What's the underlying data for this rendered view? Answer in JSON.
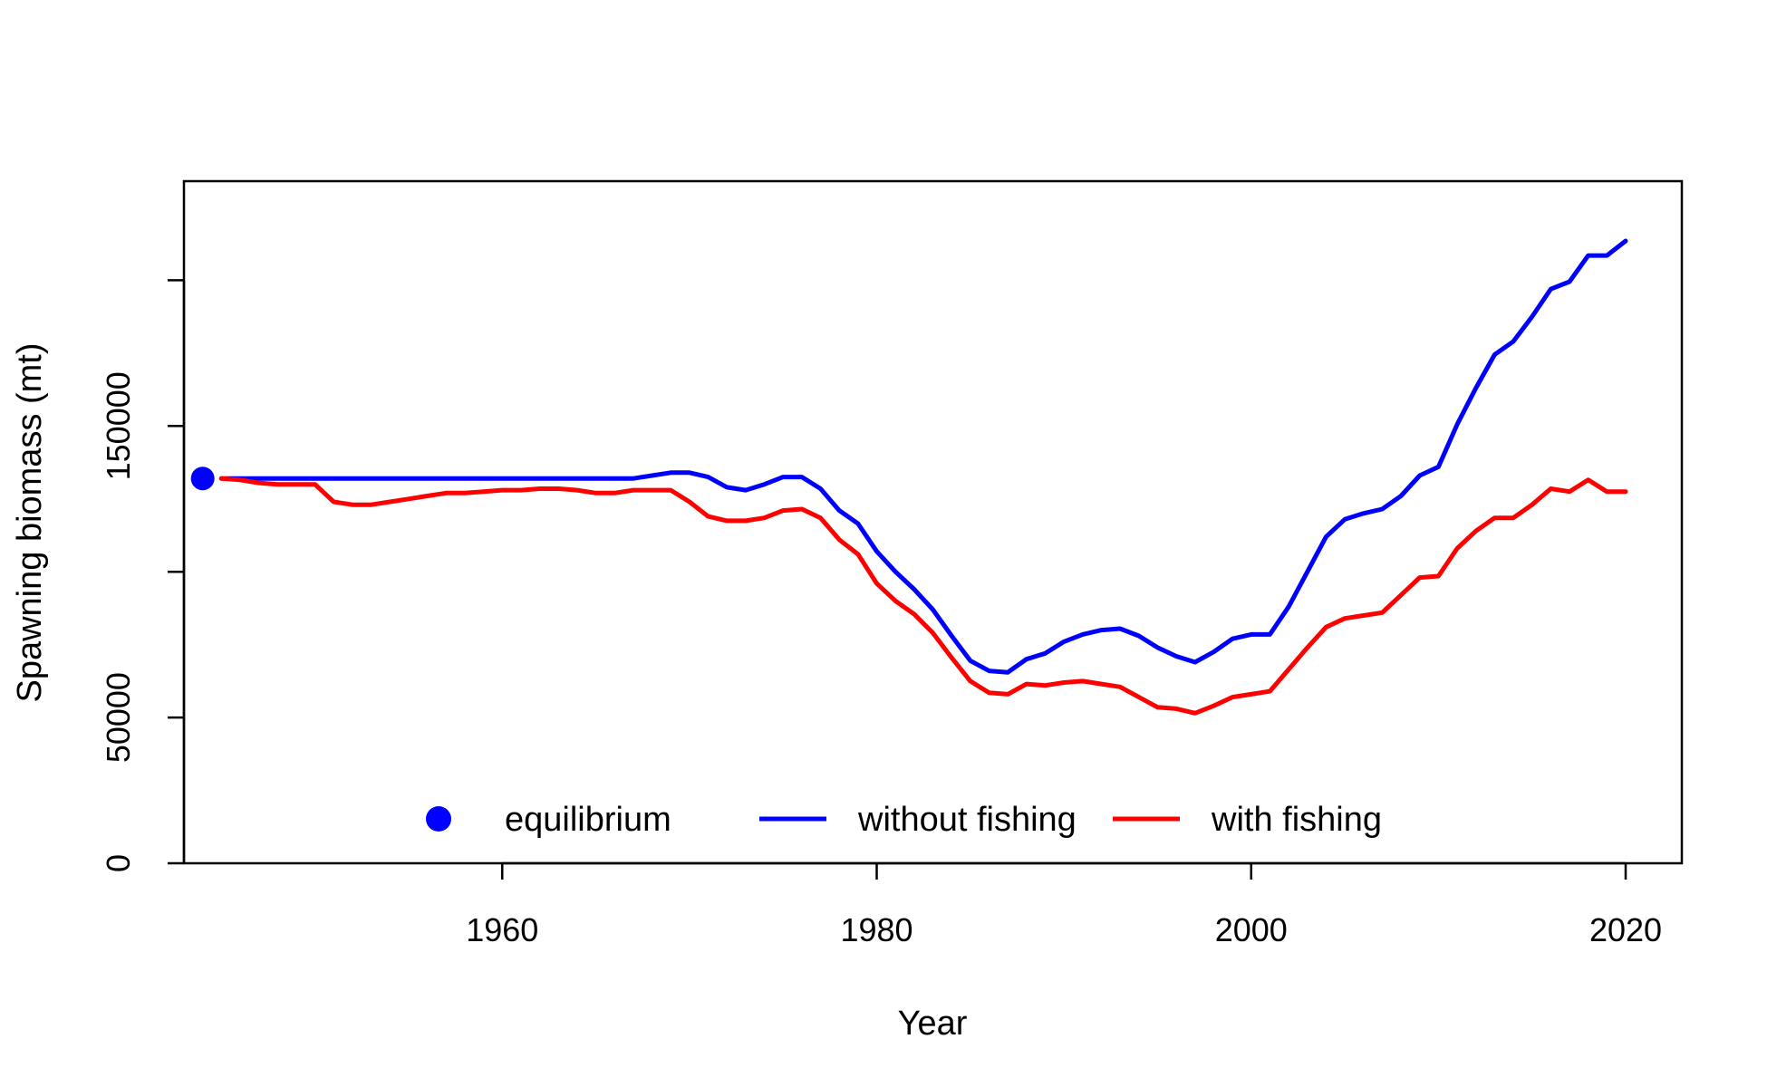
{
  "chart_data": {
    "type": "line",
    "title": "",
    "xlabel": "Year",
    "ylabel": "Spawning biomass (mt)",
    "xlim": [
      1943,
      2023
    ],
    "ylim": [
      0,
      234000
    ],
    "x_ticks": [
      1960,
      1980,
      2000,
      2020
    ],
    "x_tick_labels": [
      "1960",
      "1980",
      "2000",
      "2020"
    ],
    "y_ticks": [
      0,
      50000,
      100000,
      150000,
      200000
    ],
    "y_tick_labels": [
      "0",
      "50000",
      "",
      "150000",
      ""
    ],
    "grid": false,
    "legend_position": "bottom-center",
    "equilibrium": {
      "name": "equilibrium",
      "x": 1944,
      "y": 132000,
      "color": "#0000ff"
    },
    "series": [
      {
        "name": "without fishing",
        "color": "#0000ff",
        "x": [
          1945,
          1946,
          1947,
          1948,
          1949,
          1950,
          1951,
          1952,
          1953,
          1954,
          1955,
          1956,
          1957,
          1958,
          1959,
          1960,
          1961,
          1962,
          1963,
          1964,
          1965,
          1966,
          1967,
          1968,
          1969,
          1970,
          1971,
          1972,
          1973,
          1974,
          1975,
          1976,
          1977,
          1978,
          1979,
          1980,
          1981,
          1982,
          1983,
          1984,
          1985,
          1986,
          1987,
          1988,
          1989,
          1990,
          1991,
          1992,
          1993,
          1994,
          1995,
          1996,
          1997,
          1998,
          1999,
          2000,
          2001,
          2002,
          2003,
          2004,
          2005,
          2006,
          2007,
          2008,
          2009,
          2010,
          2011,
          2012,
          2013,
          2014,
          2015,
          2016,
          2017,
          2018,
          2019,
          2020
        ],
        "y": [
          132000,
          132000,
          132000,
          132000,
          132000,
          132000,
          132000,
          132000,
          132000,
          132000,
          132000,
          132000,
          132000,
          132000,
          132000,
          132000,
          132000,
          132000,
          132000,
          132000,
          132000,
          132000,
          132000,
          133000,
          134000,
          134000,
          132500,
          129000,
          128000,
          130000,
          132500,
          132500,
          128500,
          121000,
          116500,
          107000,
          100000,
          94000,
          87000,
          78000,
          69500,
          66000,
          65500,
          70000,
          72000,
          76000,
          78500,
          80000,
          80500,
          78000,
          74000,
          71000,
          69000,
          72500,
          77000,
          78500,
          78500,
          88000,
          100000,
          112000,
          118000,
          120000,
          121500,
          126000,
          133000,
          136000,
          150500,
          163000,
          174500,
          179000,
          187500,
          197000,
          199500,
          208500,
          208500,
          213500
        ]
      },
      {
        "name": "with fishing",
        "color": "#ff0000",
        "x": [
          1945,
          1946,
          1947,
          1948,
          1949,
          1950,
          1951,
          1952,
          1953,
          1954,
          1955,
          1956,
          1957,
          1958,
          1959,
          1960,
          1961,
          1962,
          1963,
          1964,
          1965,
          1966,
          1967,
          1968,
          1969,
          1970,
          1971,
          1972,
          1973,
          1974,
          1975,
          1976,
          1977,
          1978,
          1979,
          1980,
          1981,
          1982,
          1983,
          1984,
          1985,
          1986,
          1987,
          1988,
          1989,
          1990,
          1991,
          1992,
          1993,
          1994,
          1995,
          1996,
          1997,
          1998,
          1999,
          2000,
          2001,
          2002,
          2003,
          2004,
          2005,
          2006,
          2007,
          2008,
          2009,
          2010,
          2011,
          2012,
          2013,
          2014,
          2015,
          2016,
          2017,
          2018,
          2019,
          2020
        ],
        "y": [
          132000,
          131500,
          130500,
          130000,
          130000,
          130000,
          124000,
          123000,
          123000,
          124000,
          125000,
          126000,
          127000,
          127000,
          127500,
          128000,
          128000,
          128500,
          128500,
          128000,
          127000,
          127000,
          128000,
          128000,
          128000,
          124000,
          119000,
          117500,
          117500,
          118500,
          121000,
          121500,
          118500,
          111000,
          106000,
          96000,
          90000,
          85500,
          79000,
          70500,
          62500,
          58500,
          58000,
          61500,
          61000,
          62000,
          62500,
          61500,
          60500,
          57000,
          53500,
          53000,
          51500,
          54000,
          57000,
          58000,
          59000,
          66500,
          74000,
          81000,
          84000,
          85000,
          86000,
          92000,
          98000,
          98500,
          108000,
          114000,
          118500,
          118500,
          123000,
          128500,
          127500,
          131500,
          127500,
          127500
        ]
      }
    ]
  }
}
